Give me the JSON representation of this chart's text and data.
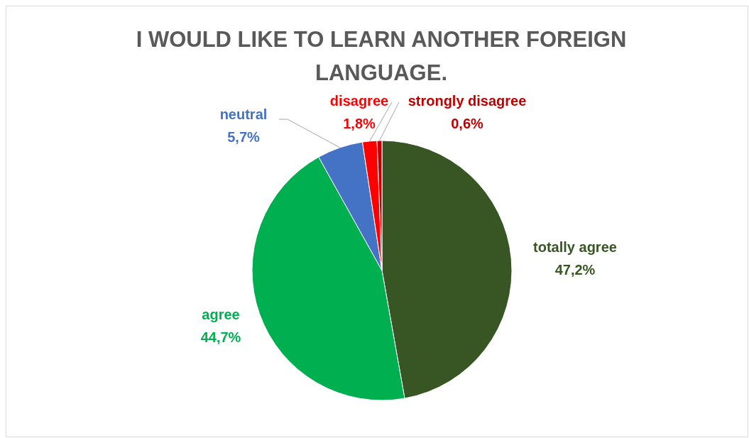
{
  "chart_data": {
    "type": "pie",
    "title": "I WOULD LIKE TO LEARN ANOTHER FOREIGN LANGUAGE.",
    "categories": [
      "totally agree",
      "agree",
      "neutral",
      "disagree",
      "strongly disagree"
    ],
    "values": [
      47.2,
      44.7,
      5.7,
      1.8,
      0.6
    ],
    "value_labels": [
      "47,2%",
      "44,7%",
      "5,7%",
      "1,8%",
      "0,6%"
    ],
    "colors": [
      "#375623",
      "#00b050",
      "#4472c4",
      "#ff0000",
      "#c00000"
    ]
  }
}
